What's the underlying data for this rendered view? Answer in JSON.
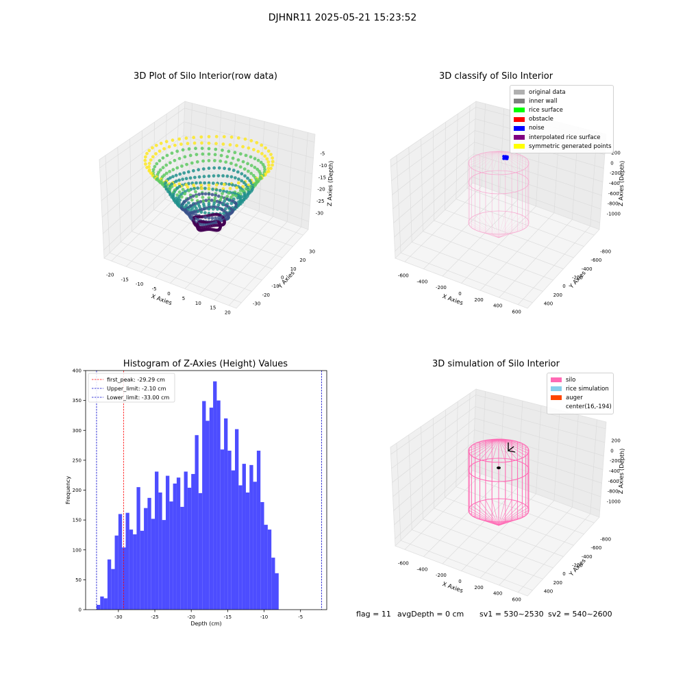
{
  "figure": {
    "suptitle": "DJHNR11 2025-05-21 15:23:52",
    "footer": {
      "flag": "flag = 11",
      "avg_depth": "avgDepth = 0 cm",
      "sv1": "sv1 = 530~2530",
      "sv2": "sv2 = 540~2600"
    }
  },
  "chart_data": [
    {
      "type": "scatter",
      "title": "3D Plot of Silo Interior(row data)",
      "xlabel": "X Axies",
      "ylabel": "Y Axies",
      "zlabel": "Z Axies (Depth)",
      "xticks": [
        -20,
        -15,
        -10,
        -5,
        0,
        5,
        10,
        15,
        20
      ],
      "yticks": [
        -30,
        -20,
        -10,
        0,
        10,
        20,
        30
      ],
      "zticks": [
        -5,
        -10,
        -15,
        -20,
        -25,
        -30
      ],
      "colormap": [
        "#440154",
        "#3b528b",
        "#21918c",
        "#5ec962",
        "#fde725"
      ],
      "xlim": [
        -20,
        20
      ],
      "ylim": [
        -33,
        33
      ],
      "zlim": [
        -33,
        -2
      ]
    },
    {
      "type": "scatter",
      "title": "3D classify of Silo Interior",
      "xlabel": "X Axies",
      "ylabel": "Y Axies",
      "zlabel": "Z Axies (Depth)",
      "xticks": [
        -600,
        -400,
        -200,
        0,
        200,
        400,
        600
      ],
      "yticks": [
        400,
        200,
        0,
        -200,
        -400,
        -600,
        -800
      ],
      "zticks": [
        200,
        0,
        -200,
        -400,
        -600,
        -800,
        -1000
      ],
      "legend": [
        {
          "label": "original data",
          "color": "#b0b0b0"
        },
        {
          "label": "inner wall",
          "color": "#808080"
        },
        {
          "label": "rice surface",
          "color": "#00ff00"
        },
        {
          "label": "obstacle",
          "color": "#ff0000"
        },
        {
          "label": "noise",
          "color": "#0000ff"
        },
        {
          "label": "interpolated rice surface",
          "color": "#800080"
        },
        {
          "label": "symmetric generated points",
          "color": "#ffff00"
        }
      ],
      "silo_color": "#f7a8cf",
      "noise_color": "#0000ff"
    },
    {
      "type": "bar",
      "title": "Histogram of Z-Axies (Height) Values",
      "xlabel": "Depth (cm)",
      "ylabel": "Frequency",
      "xlim": [
        -34.5,
        -1.4
      ],
      "ylim": [
        0,
        400
      ],
      "xticks": [
        -30,
        -25,
        -20,
        -15,
        -10,
        -5
      ],
      "yticks": [
        0,
        50,
        100,
        150,
        200,
        250,
        300,
        350,
        400
      ],
      "bin_start": -33.0,
      "bin_width": 0.5,
      "values": [
        8,
        22,
        19,
        84,
        68,
        124,
        160,
        104,
        162,
        134,
        126,
        205,
        132,
        170,
        187,
        152,
        231,
        196,
        150,
        224,
        181,
        211,
        221,
        172,
        231,
        204,
        227,
        292,
        195,
        349,
        316,
        338,
        382,
        350,
        268,
        320,
        266,
        233,
        302,
        208,
        244,
        196,
        242,
        214,
        266,
        180,
        142,
        134,
        87,
        61
      ],
      "bar_color": "#4d4dff",
      "vlines": [
        {
          "label": "first_peak: -29.29 cm",
          "x": -29.29,
          "color": "#ff0000"
        },
        {
          "label": "Upper_limit: -2.10 cm",
          "x": -2.1,
          "color": "#0000cc"
        },
        {
          "label": "Lower_limit: -33.00 cm",
          "x": -33.0,
          "color": "#0000cc"
        }
      ]
    },
    {
      "type": "scatter",
      "title": "3D simulation of Silo Interior",
      "xlabel": "X Axies",
      "ylabel": "Y Axies",
      "zlabel": "Z Axies (Depth)",
      "xticks": [
        -600,
        -400,
        -200,
        0,
        200,
        400,
        600
      ],
      "yticks": [
        400,
        200,
        0,
        -200,
        -400,
        -600,
        -800
      ],
      "zticks": [
        200,
        0,
        -200,
        -400,
        -600,
        -800,
        -1000
      ],
      "legend": [
        {
          "label": "silo",
          "color": "#ff69b4"
        },
        {
          "label": "rice simulation",
          "color": "#87ceeb"
        },
        {
          "label": "auger",
          "color": "#ff4500"
        },
        {
          "label": "center(16,-194)",
          "color": ""
        }
      ],
      "silo_color": "#ff69b4"
    }
  ]
}
